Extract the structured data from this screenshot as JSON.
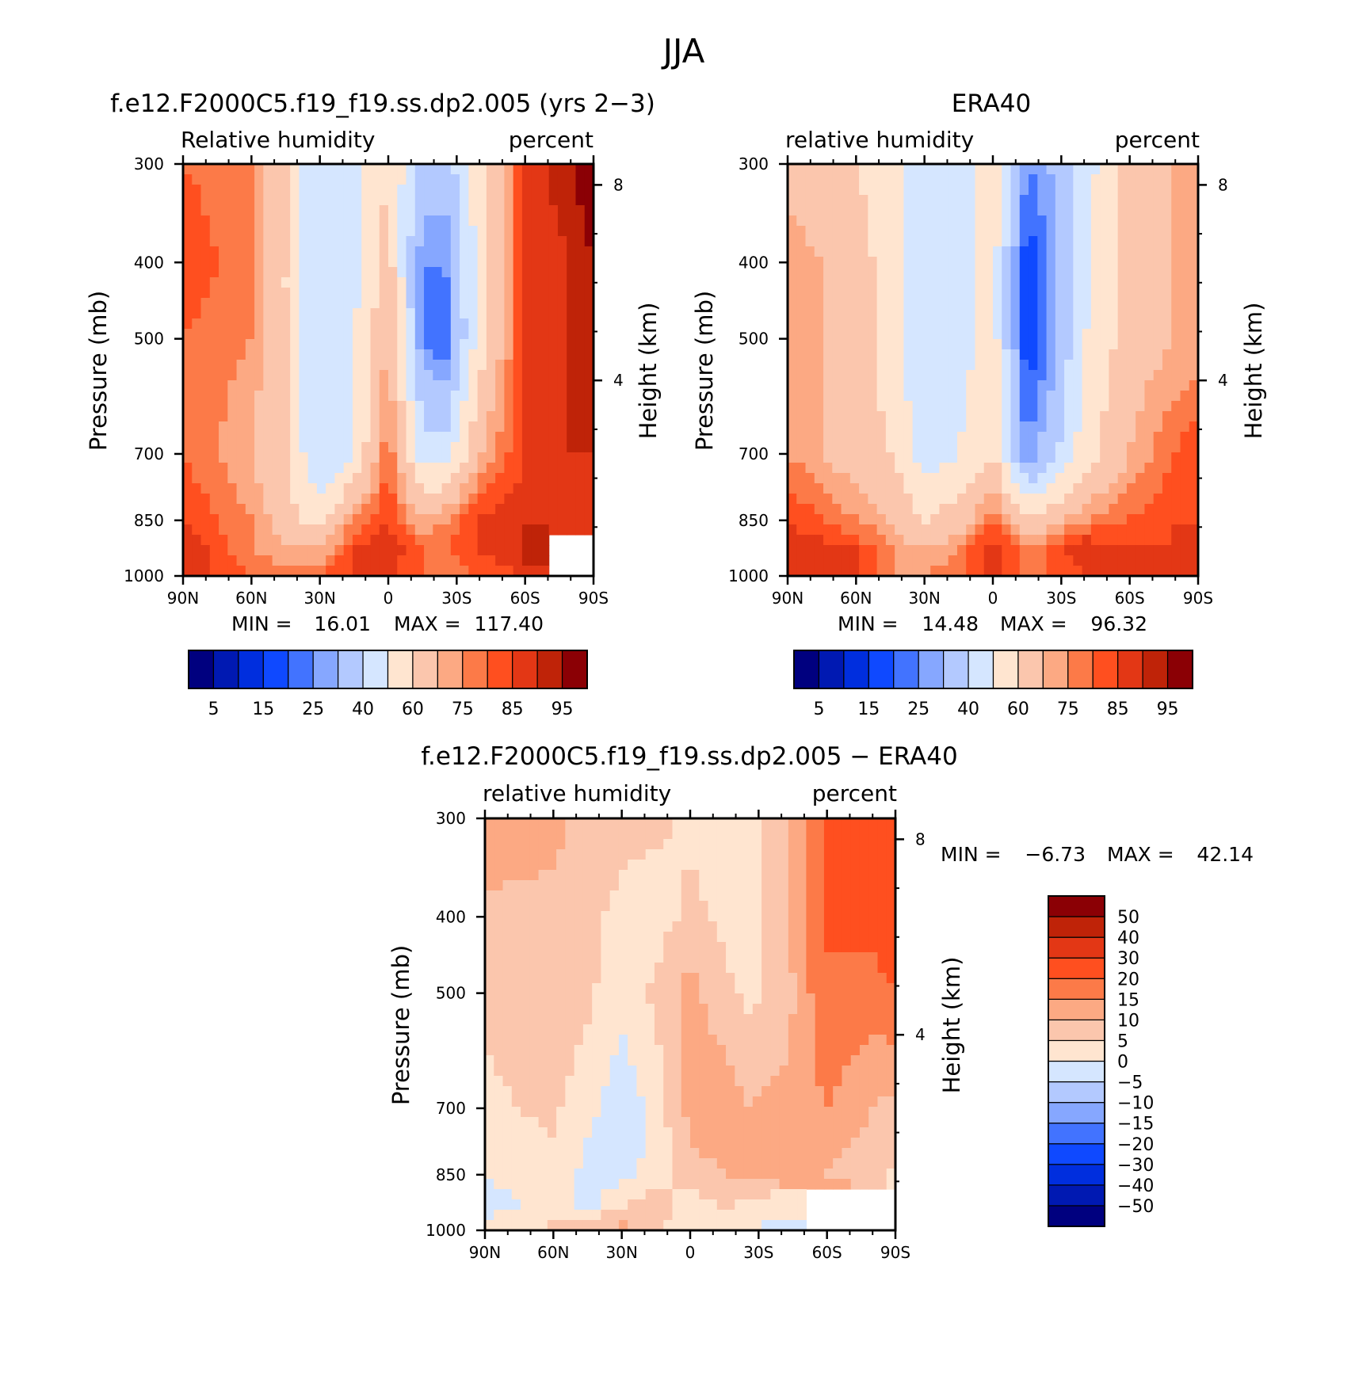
{
  "figure": {
    "season": "JJA"
  },
  "panels": {
    "model": {
      "title": "f.e12.F2000C5.f19_f19.ss.dp2.005 (yrs 2−3)",
      "left_label": "Relative humidity",
      "right_label": "percent",
      "y_title": "Pressure (mb)",
      "y2_title": "Height (km)",
      "min_label": "MIN =",
      "min_value": "16.01",
      "max_label": "MAX =",
      "max_value": "117.40"
    },
    "obs": {
      "title": "ERA40",
      "left_label": "relative humidity",
      "right_label": "percent",
      "y_title": "Pressure (mb)",
      "y2_title": "Height (km)",
      "min_label": "MIN =",
      "min_value": "14.48",
      "max_label": "MAX =",
      "max_value": "96.32"
    },
    "diff": {
      "title": "f.e12.F2000C5.f19_f19.ss.dp2.005 − ERA40",
      "left_label": "relative humidity",
      "right_label": "percent",
      "y_title": "Pressure (mb)",
      "y2_title": "Height (km)",
      "min_label": "MIN =",
      "min_value": "−6.73",
      "max_label": "MAX =",
      "max_value": "42.14"
    }
  },
  "chart_data": [
    {
      "type": "heatmap",
      "title": "f.e12.F2000C5.f19_f19.ss.dp2.005 (yrs 2−3)",
      "ylabel": "Pressure (mb)",
      "y2label": "Height (km)",
      "x_ticks": [
        "90N",
        "60N",
        "30N",
        "0",
        "30S",
        "60S",
        "90S"
      ],
      "x_values": [
        90,
        60,
        30,
        0,
        -30,
        -60,
        -90
      ],
      "xlim": [
        90,
        -90
      ],
      "y_ticks": [
        300,
        400,
        500,
        700,
        850,
        1000
      ],
      "ylim": [
        1000,
        300
      ],
      "y_scale": "log",
      "y2_ticks": [
        8,
        4
      ],
      "levels": [
        5,
        10,
        15,
        20,
        25,
        30,
        40,
        50,
        60,
        70,
        75,
        80,
        85,
        90,
        95
      ],
      "colorbar_labels": [
        "5",
        "15",
        "25",
        "40",
        "60",
        "75",
        "85",
        "95"
      ],
      "approx_values": {
        "lat": [
          90,
          60,
          45,
          30,
          15,
          0,
          -15,
          -25,
          -40,
          -60,
          -80,
          -90
        ],
        "pressure": [
          300,
          400,
          500,
          700,
          850,
          925,
          1000
        ],
        "rh": [
          [
            80,
            75,
            60,
            40,
            45,
            60,
            35,
            35,
            55,
            85,
            95,
            100
          ],
          [
            85,
            75,
            60,
            40,
            45,
            65,
            25,
            25,
            55,
            85,
            90,
            95
          ],
          [
            80,
            75,
            60,
            40,
            50,
            70,
            25,
            20,
            55,
            85,
            90,
            90
          ],
          [
            80,
            70,
            60,
            40,
            50,
            80,
            45,
            45,
            70,
            85,
            90,
            90
          ],
          [
            85,
            75,
            65,
            55,
            75,
            85,
            70,
            75,
            85,
            90,
            85,
            85
          ],
          [
            90,
            75,
            70,
            70,
            85,
            90,
            80,
            80,
            85,
            90,
            null,
            null
          ],
          [
            90,
            80,
            80,
            80,
            85,
            85,
            80,
            75,
            80,
            85,
            null,
            null
          ]
        ]
      }
    },
    {
      "type": "heatmap",
      "title": "ERA40",
      "ylabel": "Pressure (mb)",
      "y2label": "Height (km)",
      "x_ticks": [
        "90N",
        "60N",
        "30N",
        "0",
        "30S",
        "60S",
        "90S"
      ],
      "x_values": [
        90,
        60,
        30,
        0,
        -30,
        -60,
        -90
      ],
      "xlim": [
        90,
        -90
      ],
      "y_ticks": [
        300,
        400,
        500,
        700,
        850,
        1000
      ],
      "ylim": [
        1000,
        300
      ],
      "y_scale": "log",
      "y2_ticks": [
        8,
        4
      ],
      "levels": [
        5,
        10,
        15,
        20,
        25,
        30,
        40,
        50,
        60,
        70,
        75,
        80,
        85,
        90,
        95
      ],
      "colorbar_labels": [
        "5",
        "15",
        "25",
        "40",
        "60",
        "75",
        "85",
        "95"
      ],
      "approx_values": {
        "lat": [
          90,
          60,
          45,
          30,
          15,
          0,
          -15,
          -25,
          -40,
          -60,
          -80,
          -90
        ],
        "pressure": [
          300,
          400,
          500,
          700,
          850,
          925,
          1000
        ],
        "rh": [
          [
            65,
            60,
            55,
            45,
            45,
            55,
            25,
            30,
            45,
            65,
            70,
            70
          ],
          [
            75,
            65,
            55,
            40,
            45,
            55,
            15,
            25,
            45,
            65,
            70,
            70
          ],
          [
            75,
            65,
            55,
            40,
            45,
            55,
            15,
            25,
            50,
            65,
            70,
            70
          ],
          [
            75,
            65,
            60,
            45,
            50,
            60,
            25,
            35,
            55,
            70,
            80,
            85
          ],
          [
            85,
            75,
            70,
            60,
            65,
            80,
            60,
            65,
            75,
            80,
            85,
            85
          ],
          [
            90,
            85,
            75,
            70,
            75,
            90,
            75,
            80,
            90,
            85,
            85,
            90
          ],
          [
            90,
            85,
            75,
            75,
            80,
            85,
            80,
            80,
            85,
            85,
            85,
            85
          ]
        ]
      }
    },
    {
      "type": "heatmap",
      "title": "f.e12.F2000C5.f19_f19.ss.dp2.005 − ERA40",
      "ylabel": "Pressure (mb)",
      "y2label": "Height (km)",
      "x_ticks": [
        "90N",
        "60N",
        "30N",
        "0",
        "30S",
        "60S",
        "90S"
      ],
      "x_values": [
        90,
        60,
        30,
        0,
        -30,
        -60,
        -90
      ],
      "xlim": [
        90,
        -90
      ],
      "y_ticks": [
        300,
        400,
        500,
        700,
        850,
        1000
      ],
      "ylim": [
        1000,
        300
      ],
      "y_scale": "log",
      "y2_ticks": [
        8,
        4
      ],
      "levels": [
        -50,
        -40,
        -30,
        -20,
        -15,
        -10,
        -5,
        0,
        5,
        10,
        15,
        20,
        30,
        40,
        50
      ],
      "colorbar_labels": [
        "50",
        "40",
        "30",
        "20",
        "15",
        "10",
        "5",
        "0",
        "−5",
        "−10",
        "−15",
        "−20",
        "−30",
        "−40",
        "−50"
      ],
      "approx_values": {
        "lat": [
          90,
          60,
          45,
          30,
          15,
          0,
          -15,
          -25,
          -40,
          -60,
          -80,
          -90
        ],
        "pressure": [
          300,
          400,
          500,
          700,
          850,
          925,
          1000
        ],
        "rh": [
          [
            15,
            12,
            8,
            6,
            6,
            4,
            4,
            2,
            8,
            22,
            28,
            30
          ],
          [
            8,
            8,
            6,
            4,
            3,
            6,
            4,
            2,
            8,
            20,
            22,
            25
          ],
          [
            6,
            8,
            6,
            2,
            6,
            12,
            6,
            4,
            6,
            20,
            18,
            20
          ],
          [
            4,
            6,
            2,
            -4,
            2,
            12,
            14,
            10,
            12,
            15,
            10,
            8
          ],
          [
            0,
            4,
            -2,
            -2,
            2,
            8,
            10,
            12,
            10,
            10,
            6,
            4
          ],
          [
            -2,
            2,
            -2,
            4,
            8,
            2,
            6,
            4,
            2,
            null,
            null,
            null
          ],
          [
            2,
            6,
            10,
            12,
            6,
            2,
            2,
            0,
            -2,
            null,
            null,
            null
          ]
        ]
      }
    }
  ],
  "colormap": {
    "abs": [
      "#00007f",
      "#0019b2",
      "#002ede",
      "#0f49ff",
      "#4273ff",
      "#86a7ff",
      "#b3c9ff",
      "#d5e6ff",
      "#ffe5d0",
      "#fbc6ad",
      "#fca983",
      "#fc7a48",
      "#ff4f1f",
      "#e33715",
      "#bf2308",
      "#8b0005"
    ],
    "diff": [
      "#00007f",
      "#0019b2",
      "#002ede",
      "#0f49ff",
      "#4273ff",
      "#86a7ff",
      "#b3c9ff",
      "#d5e6ff",
      "#ffe5d0",
      "#fbc6ad",
      "#fca983",
      "#fc7a48",
      "#ff4f1f",
      "#e33715",
      "#bf2308",
      "#8b0005"
    ]
  }
}
